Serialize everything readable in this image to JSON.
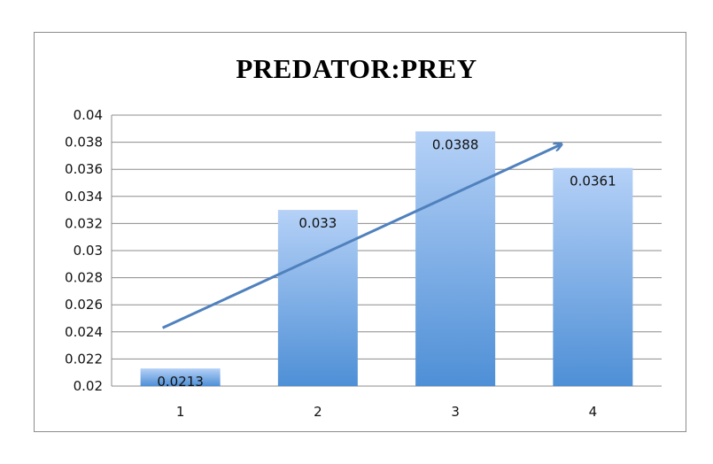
{
  "chart_data": {
    "type": "bar",
    "title": "PREDATOR:PREY",
    "categories": [
      "1",
      "2",
      "3",
      "4"
    ],
    "values": [
      0.0213,
      0.033,
      0.0388,
      0.0361
    ],
    "data_labels": [
      "0.0213",
      "0.033",
      "0.0388",
      "0.0361"
    ],
    "ylim": [
      0.02,
      0.04
    ],
    "yticks": [
      "0.02",
      "0.022",
      "0.024",
      "0.026",
      "0.028",
      "0.03",
      "0.032",
      "0.034",
      "0.036",
      "0.038",
      "0.04"
    ],
    "xlabel": "",
    "ylabel": "",
    "grid": true,
    "legend": "none",
    "trend_arrow": {
      "from": [
        1,
        0.0243
      ],
      "to": [
        4,
        0.0378
      ]
    },
    "colors": {
      "bar_top": "#b5d1f7",
      "bar_bottom": "#4e8fd6",
      "arrow": "#4f81bd",
      "grid": "#8c8c8c"
    }
  }
}
